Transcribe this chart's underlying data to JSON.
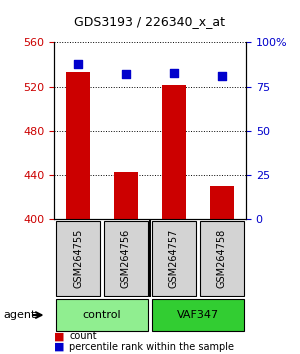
{
  "title": "GDS3193 / 226340_x_at",
  "samples": [
    "GSM264755",
    "GSM264756",
    "GSM264757",
    "GSM264758"
  ],
  "counts": [
    533,
    443,
    522,
    430
  ],
  "percentile_ranks": [
    88,
    82,
    83,
    81
  ],
  "ylim_left": [
    400,
    560
  ],
  "ylim_right": [
    0,
    100
  ],
  "yticks_left": [
    400,
    440,
    480,
    520,
    560
  ],
  "yticks_right": [
    0,
    25,
    50,
    75,
    100
  ],
  "yticklabels_right": [
    "0",
    "25",
    "50",
    "75",
    "100%"
  ],
  "groups": [
    {
      "label": "control",
      "samples": [
        0,
        1
      ],
      "color": "#90EE90"
    },
    {
      "label": "VAF347",
      "samples": [
        2,
        3
      ],
      "color": "#32CD32"
    }
  ],
  "bar_color": "#CC0000",
  "dot_color": "#0000CC",
  "bar_width": 0.5,
  "background_color": "#FFFFFF",
  "plot_bg_color": "#FFFFFF",
  "legend_count_color": "#CC0000",
  "legend_pct_color": "#0000CC",
  "agent_label": "agent",
  "grid_color": "#000000",
  "left_tick_color": "#CC0000",
  "right_tick_color": "#0000CC"
}
